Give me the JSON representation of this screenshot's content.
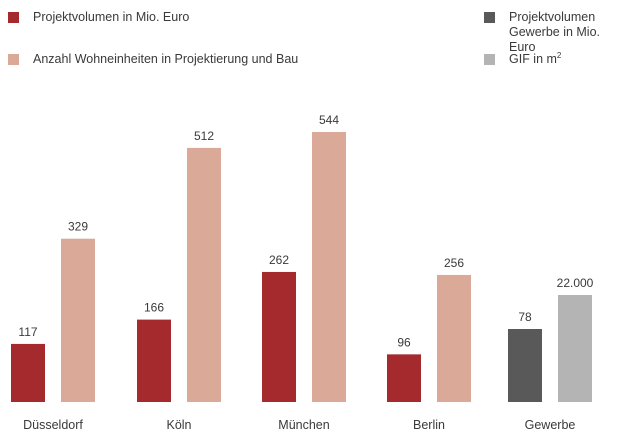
{
  "colors": {
    "projektvolumen": "#a52a2d",
    "wohneinheiten": "#dba998",
    "gewerbe_volumen": "#595959",
    "gif": "#b4b4b4"
  },
  "legend": [
    {
      "label": "Projektvolumen in Mio. Euro",
      "color_key": "projektvolumen"
    },
    {
      "label": "Anzahl Wohneinheiten in Projektierung und Bau",
      "color_key": "wohneinheiten"
    },
    {
      "label": "Projektvolumen\nGewerbe in Mio. Euro",
      "color_key": "gewerbe_volumen"
    },
    {
      "label": "GIF in m",
      "label_sup": "2",
      "color_key": "gif"
    }
  ],
  "chart_data": {
    "type": "bar",
    "categories": [
      "Düsseldorf",
      "Köln",
      "München",
      "Berlin",
      "Gewerbe"
    ],
    "groups": [
      {
        "category": "Düsseldorf",
        "bars": [
          {
            "series": "Projektvolumen in Mio. Euro",
            "value": 117,
            "label": "117",
            "color_key": "projektvolumen"
          },
          {
            "series": "Anzahl Wohneinheiten in Projektierung und Bau",
            "value": 329,
            "label": "329",
            "color_key": "wohneinheiten"
          }
        ]
      },
      {
        "category": "Köln",
        "bars": [
          {
            "series": "Projektvolumen in Mio. Euro",
            "value": 166,
            "label": "166",
            "color_key": "projektvolumen"
          },
          {
            "series": "Anzahl Wohneinheiten in Projektierung und Bau",
            "value": 512,
            "label": "512",
            "color_key": "wohneinheiten"
          }
        ]
      },
      {
        "category": "München",
        "bars": [
          {
            "series": "Projektvolumen in Mio. Euro",
            "value": 262,
            "label": "262",
            "color_key": "projektvolumen"
          },
          {
            "series": "Anzahl Wohneinheiten in Projektierung und Bau",
            "value": 544,
            "label": "544",
            "color_key": "wohneinheiten"
          }
        ]
      },
      {
        "category": "Berlin",
        "bars": [
          {
            "series": "Projektvolumen in Mio. Euro",
            "value": 96,
            "label": "96",
            "color_key": "projektvolumen"
          },
          {
            "series": "Anzahl Wohneinheiten in Projektierung und Bau",
            "value": 256,
            "label": "256",
            "color_key": "wohneinheiten"
          }
        ]
      },
      {
        "category": "Gewerbe",
        "bars": [
          {
            "series": "Projektvolumen Gewerbe in Mio. Euro",
            "value": 78,
            "label": "78",
            "color_key": "gewerbe_volumen"
          },
          {
            "series": "GIF in m2",
            "value": 22000,
            "label": "22.000",
            "color_key": "gif"
          }
        ]
      }
    ],
    "grid": false,
    "legend_position": "top"
  }
}
